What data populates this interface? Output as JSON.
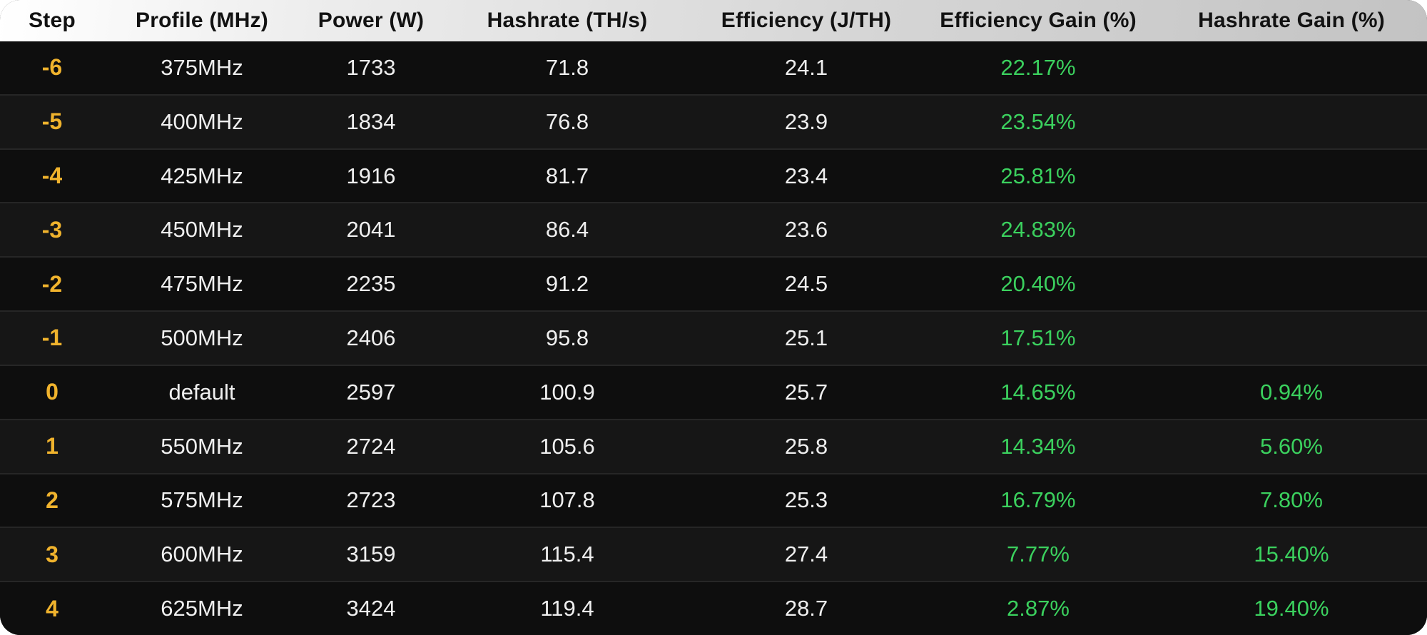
{
  "colors": {
    "step_accent": "#F0B32D",
    "gain_green": "#3BD15E",
    "value_text": "#EFEFEF",
    "header_text": "#121212",
    "row_dark": "#0E0E0E",
    "row_light": "#161616",
    "separator": "#262626",
    "header_gradient_left": "#FFFFFF",
    "header_gradient_right": "#C3C3C3"
  },
  "chart_data": {
    "type": "table",
    "title": "",
    "columns": [
      "Step",
      "Profile (MHz)",
      "Power (W)",
      "Hashrate (TH/s)",
      "Efficiency (J/TH)",
      "Efficiency Gain (%)",
      "Hashrate Gain (%)"
    ],
    "rows": [
      [
        "-6",
        "375MHz",
        "1733",
        "71.8",
        "24.1",
        "22.17%",
        ""
      ],
      [
        "-5",
        "400MHz",
        "1834",
        "76.8",
        "23.9",
        "23.54%",
        ""
      ],
      [
        "-4",
        "425MHz",
        "1916",
        "81.7",
        "23.4",
        "25.81%",
        ""
      ],
      [
        "-3",
        "450MHz",
        "2041",
        "86.4",
        "23.6",
        "24.83%",
        ""
      ],
      [
        "-2",
        "475MHz",
        "2235",
        "91.2",
        "24.5",
        "20.40%",
        ""
      ],
      [
        "-1",
        "500MHz",
        "2406",
        "95.8",
        "25.1",
        "17.51%",
        ""
      ],
      [
        "0",
        "default",
        "2597",
        "100.9",
        "25.7",
        "14.65%",
        "0.94%"
      ],
      [
        "1",
        "550MHz",
        "2724",
        "105.6",
        "25.8",
        "14.34%",
        "5.60%"
      ],
      [
        "2",
        "575MHz",
        "2723",
        "107.8",
        "25.3",
        "16.79%",
        "7.80%"
      ],
      [
        "3",
        "600MHz",
        "3159",
        "115.4",
        "27.4",
        "7.77%",
        "15.40%"
      ],
      [
        "4",
        "625MHz",
        "3424",
        "119.4",
        "28.7",
        "2.87%",
        "19.40%"
      ]
    ]
  }
}
